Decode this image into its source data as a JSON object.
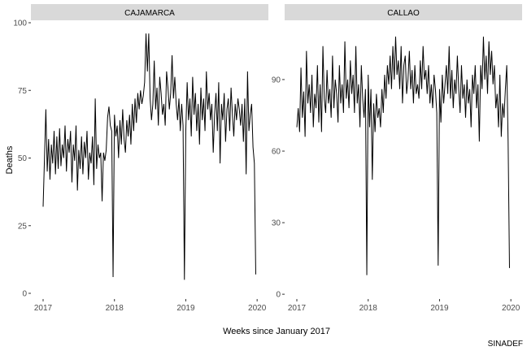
{
  "ylabel": "Deaths",
  "xlabel": "Weeks since January 2017",
  "caption": "SINADEF",
  "chart_data": [
    {
      "type": "line",
      "title": "CAJAMARCA",
      "color": "#000000",
      "x": [
        0,
        1,
        2,
        3,
        4,
        5,
        6,
        7,
        8,
        9,
        10,
        11,
        12,
        13,
        14,
        15,
        16,
        17,
        18,
        19,
        20,
        21,
        22,
        23,
        24,
        25,
        26,
        27,
        28,
        29,
        30,
        31,
        32,
        33,
        34,
        35,
        36,
        37,
        38,
        39,
        40,
        41,
        42,
        43,
        44,
        45,
        46,
        47,
        48,
        49,
        50,
        51,
        52,
        53,
        54,
        55,
        56,
        57,
        58,
        59,
        60,
        61,
        62,
        63,
        64,
        65,
        66,
        67,
        68,
        69,
        70,
        71,
        72,
        73,
        74,
        75,
        76,
        77,
        78,
        79,
        80,
        81,
        82,
        83,
        84,
        85,
        86,
        87,
        88,
        89,
        90,
        91,
        92,
        93,
        94,
        95,
        96,
        97,
        98,
        99,
        100,
        101,
        102,
        103,
        104,
        105,
        106,
        107,
        108,
        109,
        110,
        111,
        112,
        113,
        114,
        115,
        116,
        117,
        118,
        119,
        120,
        121,
        122,
        123,
        124,
        125,
        126,
        127,
        128,
        129,
        130,
        131,
        132,
        133,
        134,
        135,
        136,
        137,
        138,
        139,
        140,
        141,
        142,
        143,
        144,
        145,
        146,
        147,
        148,
        149,
        150,
        151,
        152,
        153,
        154,
        155
      ],
      "values": [
        32,
        50,
        68,
        45,
        57,
        42,
        55,
        48,
        60,
        44,
        58,
        46,
        61,
        47,
        55,
        50,
        62,
        45,
        57,
        52,
        60,
        41,
        55,
        49,
        62,
        38,
        53,
        46,
        58,
        44,
        56,
        50,
        60,
        42,
        52,
        48,
        58,
        40,
        72,
        46,
        55,
        50,
        52,
        34,
        52,
        49,
        53,
        65,
        69,
        62,
        60,
        6,
        66,
        58,
        62,
        50,
        64,
        55,
        68,
        57,
        52,
        64,
        58,
        66,
        55,
        70,
        60,
        72,
        63,
        74,
        68,
        75,
        70,
        73,
        78,
        96,
        82,
        96,
        72,
        64,
        70,
        86,
        68,
        76,
        62,
        80,
        74,
        66,
        70,
        62,
        82,
        76,
        68,
        74,
        88,
        72,
        80,
        70,
        64,
        72,
        60,
        70,
        62,
        5,
        60,
        78,
        64,
        72,
        58,
        80,
        66,
        74,
        60,
        70,
        55,
        76,
        64,
        72,
        60,
        82,
        68,
        74,
        64,
        70,
        52,
        66,
        74,
        60,
        78,
        48,
        70,
        64,
        74,
        56,
        68,
        72,
        60,
        76,
        66,
        58,
        70,
        64,
        72,
        68,
        62,
        70,
        56,
        72,
        44,
        82,
        60,
        66,
        70,
        54,
        48,
        7
      ],
      "xlim": [
        -8.9,
        164.2
      ],
      "xticks": [
        {
          "value": 0,
          "label": "2017"
        },
        {
          "value": 52,
          "label": "2018"
        },
        {
          "value": 104,
          "label": "2019"
        },
        {
          "value": 156,
          "label": "2020"
        }
      ],
      "ylim": [
        -2.1,
        100.6
      ],
      "yticks": [
        0,
        25,
        50,
        75,
        100
      ]
    },
    {
      "type": "line",
      "title": "CALLAO",
      "color": "#000000",
      "x": [
        0,
        1,
        2,
        3,
        4,
        5,
        6,
        7,
        8,
        9,
        10,
        11,
        12,
        13,
        14,
        15,
        16,
        17,
        18,
        19,
        20,
        21,
        22,
        23,
        24,
        25,
        26,
        27,
        28,
        29,
        30,
        31,
        32,
        33,
        34,
        35,
        36,
        37,
        38,
        39,
        40,
        41,
        42,
        43,
        44,
        45,
        46,
        47,
        48,
        49,
        50,
        51,
        52,
        53,
        54,
        55,
        56,
        57,
        58,
        59,
        60,
        61,
        62,
        63,
        64,
        65,
        66,
        67,
        68,
        69,
        70,
        71,
        72,
        73,
        74,
        75,
        76,
        77,
        78,
        79,
        80,
        81,
        82,
        83,
        84,
        85,
        86,
        87,
        88,
        89,
        90,
        91,
        92,
        93,
        94,
        95,
        96,
        97,
        98,
        99,
        100,
        101,
        102,
        103,
        104,
        105,
        106,
        107,
        108,
        109,
        110,
        111,
        112,
        113,
        114,
        115,
        116,
        117,
        118,
        119,
        120,
        121,
        122,
        123,
        124,
        125,
        126,
        127,
        128,
        129,
        130,
        131,
        132,
        133,
        134,
        135,
        136,
        137,
        138,
        139,
        140,
        141,
        142,
        143,
        144,
        145,
        146,
        147,
        148,
        149,
        150,
        151,
        152,
        153,
        154,
        155
      ],
      "values": [
        70,
        78,
        68,
        95,
        74,
        85,
        66,
        102,
        80,
        88,
        76,
        92,
        70,
        84,
        78,
        96,
        72,
        88,
        68,
        104,
        82,
        76,
        94,
        80,
        86,
        74,
        100,
        78,
        90,
        84,
        72,
        96,
        80,
        88,
        76,
        106,
        82,
        90,
        78,
        98,
        84,
        92,
        76,
        104,
        80,
        88,
        70,
        96,
        82,
        74,
        86,
        8,
        92,
        70,
        86,
        48,
        80,
        68,
        84,
        74,
        78,
        70,
        86,
        76,
        92,
        82,
        96,
        88,
        100,
        86,
        104,
        90,
        108,
        92,
        98,
        86,
        104,
        80,
        96,
        100,
        84,
        90,
        102,
        86,
        94,
        80,
        96,
        84,
        88,
        82,
        98,
        86,
        104,
        90,
        94,
        84,
        96,
        80,
        88,
        78,
        92,
        86,
        76,
        12,
        86,
        72,
        92,
        80,
        88,
        96,
        84,
        104,
        82,
        94,
        78,
        90,
        84,
        100,
        86,
        76,
        96,
        82,
        88,
        74,
        90,
        80,
        86,
        70,
        92,
        84,
        96,
        78,
        88,
        64,
        96,
        86,
        108,
        90,
        100,
        84,
        106,
        92,
        102,
        88,
        96,
        78,
        84,
        70,
        92,
        66,
        80,
        74,
        86,
        96,
        64,
        11
      ],
      "xlim": [
        -8.9,
        164.2
      ],
      "xticks": [
        {
          "value": 0,
          "label": "2017"
        },
        {
          "value": 52,
          "label": "2018"
        },
        {
          "value": 104,
          "label": "2019"
        },
        {
          "value": 156,
          "label": "2020"
        }
      ],
      "ylim": [
        -2,
        114.5
      ],
      "yticks": [
        0,
        30,
        60,
        90
      ]
    }
  ]
}
